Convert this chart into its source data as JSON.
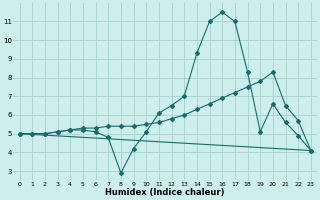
{
  "xlabel": "Humidex (Indice chaleur)",
  "background_color": "#cceeed",
  "grid_color": "#aad4d2",
  "line_color": "#1a6b6b",
  "xlim": [
    -0.5,
    23.5
  ],
  "ylim": [
    2.5,
    12.0
  ],
  "yticks": [
    3,
    4,
    5,
    6,
    7,
    8,
    9,
    10,
    11
  ],
  "xticks": [
    0,
    1,
    2,
    3,
    4,
    5,
    6,
    7,
    8,
    9,
    10,
    11,
    12,
    13,
    14,
    15,
    16,
    17,
    18,
    19,
    20,
    21,
    22,
    23
  ],
  "line1_x": [
    0,
    1,
    2,
    3,
    4,
    5,
    6,
    7,
    8,
    9,
    10,
    11,
    12,
    13,
    14,
    15,
    16,
    17,
    18,
    19,
    20,
    21,
    22,
    23
  ],
  "line1_y": [
    5.0,
    5.0,
    5.0,
    5.1,
    5.2,
    5.2,
    5.1,
    4.8,
    2.9,
    4.2,
    5.1,
    6.1,
    6.5,
    7.0,
    9.3,
    11.0,
    11.5,
    11.0,
    8.3,
    5.1,
    6.6,
    5.6,
    4.9,
    4.1
  ],
  "line2_x": [
    0,
    1,
    2,
    3,
    4,
    5,
    6,
    7,
    8,
    9,
    10,
    11,
    12,
    13,
    14,
    15,
    16,
    17,
    18,
    19,
    20,
    21,
    22,
    23
  ],
  "line2_y": [
    5.0,
    5.0,
    5.0,
    5.1,
    5.2,
    5.3,
    5.3,
    5.4,
    5.4,
    5.4,
    5.5,
    5.6,
    5.8,
    6.0,
    6.3,
    6.6,
    6.9,
    7.2,
    7.5,
    7.8,
    8.3,
    6.5,
    5.7,
    4.1
  ],
  "line3_x": [
    0,
    23
  ],
  "line3_y": [
    5.0,
    4.1
  ]
}
